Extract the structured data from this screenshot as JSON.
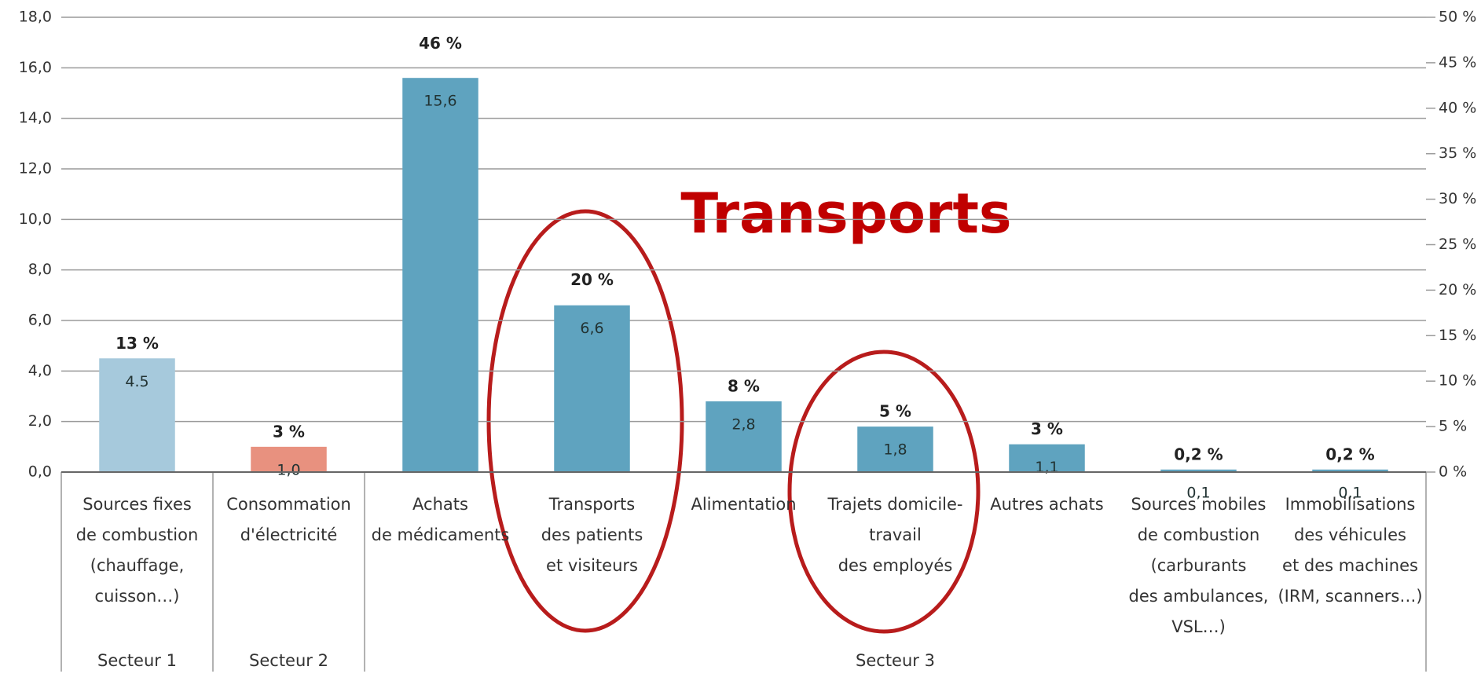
{
  "chart_data": {
    "type": "bar",
    "categories": [
      "Sources fixes\nde combustion\n(chauffage,\ncuisson…)",
      "Consommation\nd'électricité",
      "Achats\nde médicaments",
      "Transports\ndes patients\net visiteurs",
      "Alimentation",
      "Trajets domicile-\ntravail\ndes employés",
      "Autres achats",
      "Sources mobiles\nde combustion\n(carburants\ndes ambulances,\nVSL…)",
      "Immobilisations\ndes véhicules\net des machines\n(IRM, scanners…)"
    ],
    "values": [
      4.5,
      1.0,
      15.6,
      6.6,
      2.8,
      1.8,
      1.1,
      0.1,
      0.1
    ],
    "value_labels": [
      "4.5",
      "1,0",
      "15,6",
      "6,6",
      "2,8",
      "1,8",
      "1,1",
      "0,1",
      "0,1"
    ],
    "colors": [
      "#a6c9dc",
      "#e8917f",
      "#5fa3bf",
      "#5fa3bf",
      "#5fa3bf",
      "#5fa3bf",
      "#5fa3bf",
      "#5fa3bf",
      "#5fa3bf"
    ],
    "percent": [
      13,
      3,
      46,
      20,
      8,
      5,
      3,
      0.2,
      0.2
    ],
    "percent_labels": [
      "13 %",
      "3 %",
      "46 %",
      "20 %",
      "8 %",
      "5 %",
      "3 %",
      "0,2 %",
      "0,2 %"
    ],
    "sectors": [
      "Secteur 1",
      "Secteur 2",
      "Secteur 3"
    ],
    "annotation": "Transports",
    "ylim": [
      0,
      18
    ],
    "yticks": [
      {
        "value": 0,
        "label": "0,0"
      },
      {
        "value": 2,
        "label": "2,0"
      },
      {
        "value": 4,
        "label": "4,0"
      },
      {
        "value": 6,
        "label": "6,0"
      },
      {
        "value": 8,
        "label": "8,0"
      },
      {
        "value": 10,
        "label": "10,0"
      },
      {
        "value": 12,
        "label": "12,0"
      },
      {
        "value": 14,
        "label": "14,0"
      },
      {
        "value": 16,
        "label": "16,0"
      },
      {
        "value": 18,
        "label": "18,0"
      }
    ],
    "y2lim": [
      0,
      50
    ],
    "y2ticks": [
      {
        "value": 0,
        "label": "0 %"
      },
      {
        "value": 5,
        "label": "5 %"
      },
      {
        "value": 10,
        "label": "10 %"
      },
      {
        "value": 15,
        "label": "15 %"
      },
      {
        "value": 20,
        "label": "20 %"
      },
      {
        "value": 25,
        "label": "25 %"
      },
      {
        "value": 30,
        "label": "30 %"
      },
      {
        "value": 35,
        "label": "35 %"
      },
      {
        "value": 40,
        "label": "40 %"
      },
      {
        "value": 45,
        "label": "45 %"
      },
      {
        "value": 50,
        "label": "50 %"
      }
    ],
    "grid": true
  }
}
